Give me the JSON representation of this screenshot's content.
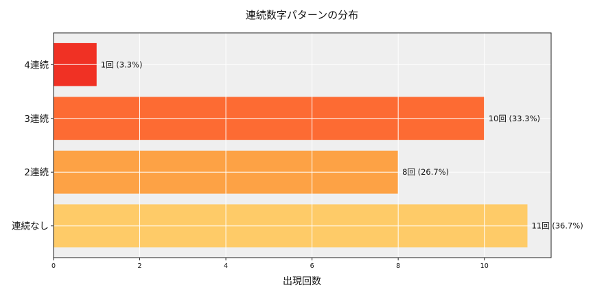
{
  "chart_data": {
    "type": "bar",
    "orientation": "horizontal",
    "title": "連続数字パターンの分布",
    "xlabel": "出現回数",
    "ylabel": "",
    "categories": [
      "連続なし",
      "2連続",
      "3連続",
      "4連続"
    ],
    "values": [
      11,
      8,
      10,
      1
    ],
    "percentages": [
      36.7,
      26.7,
      33.3,
      3.3
    ],
    "bar_labels": [
      "11回 (36.7%)",
      "8回 (26.7%)",
      "10回 (33.3%)",
      "1回 (3.3%)"
    ],
    "colors": [
      "#fecb68",
      "#fda245",
      "#fd6b33",
      "#f03124"
    ],
    "xlim": [
      0,
      11.55
    ],
    "xticks": [
      0,
      2,
      4,
      6,
      8,
      10
    ],
    "grid": true,
    "legend": null
  },
  "style": {
    "plot_background": "#efefef",
    "grid_color": "#ffffff",
    "spine_color": "#222222"
  }
}
